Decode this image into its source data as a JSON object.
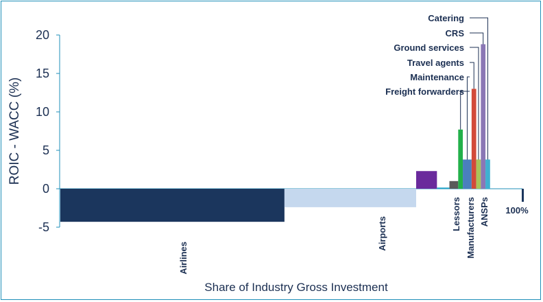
{
  "chart_data": {
    "type": "bar",
    "subtype": "variable-width (marimekko) bar",
    "ylabel": "ROIC - WACC (%)",
    "xlabel": "Share of Industry Gross Investment",
    "ylim": [
      -5,
      20
    ],
    "yticks": [
      "20",
      "15",
      "10",
      "5",
      "0",
      "-5"
    ],
    "end_label": "100%",
    "grid": false,
    "bars": [
      {
        "name": "Airlines",
        "value": -4.3,
        "share_pct": 48.5,
        "color": "#1b365d"
      },
      {
        "name": "Airports",
        "value": -2.4,
        "share_pct": 28.5,
        "color": "#c5d8ee"
      },
      {
        "name": "Lessors",
        "value": 2.3,
        "share_pct": 4.5,
        "color": "#6a2a9c"
      },
      {
        "name": "Manufacturers",
        "value": 0.15,
        "share_pct": 2.7,
        "color": "#1fa3c8"
      },
      {
        "name": "ANSPs",
        "value": 1.0,
        "share_pct": 1.9,
        "color": "#5a5a5a"
      },
      {
        "name": "Freight forwarders",
        "value": 7.7,
        "share_pct": 1.0,
        "color": "#22b04a"
      },
      {
        "name": "Maintenance",
        "value": 3.8,
        "share_pct": 1.9,
        "color": "#4a7fbe"
      },
      {
        "name": "Travel agents",
        "value": 13.0,
        "share_pct": 1.0,
        "color": "#d24a3a"
      },
      {
        "name": "Ground services",
        "value": 3.8,
        "share_pct": 1.0,
        "color": "#a8c45a"
      },
      {
        "name": "CRS",
        "value": 18.8,
        "share_pct": 1.0,
        "color": "#8a77b5"
      },
      {
        "name": "Catering",
        "value": 3.8,
        "share_pct": 1.0,
        "color": "#3fb0d0"
      }
    ],
    "bottom_labels": [
      "Airlines",
      "Airports",
      "Lessors",
      "Manufacturers",
      "ANSPs"
    ],
    "callout_labels": [
      "Catering",
      "CRS",
      "Ground services",
      "Travel agents",
      "Maintenance",
      "Freight forwarders"
    ]
  }
}
